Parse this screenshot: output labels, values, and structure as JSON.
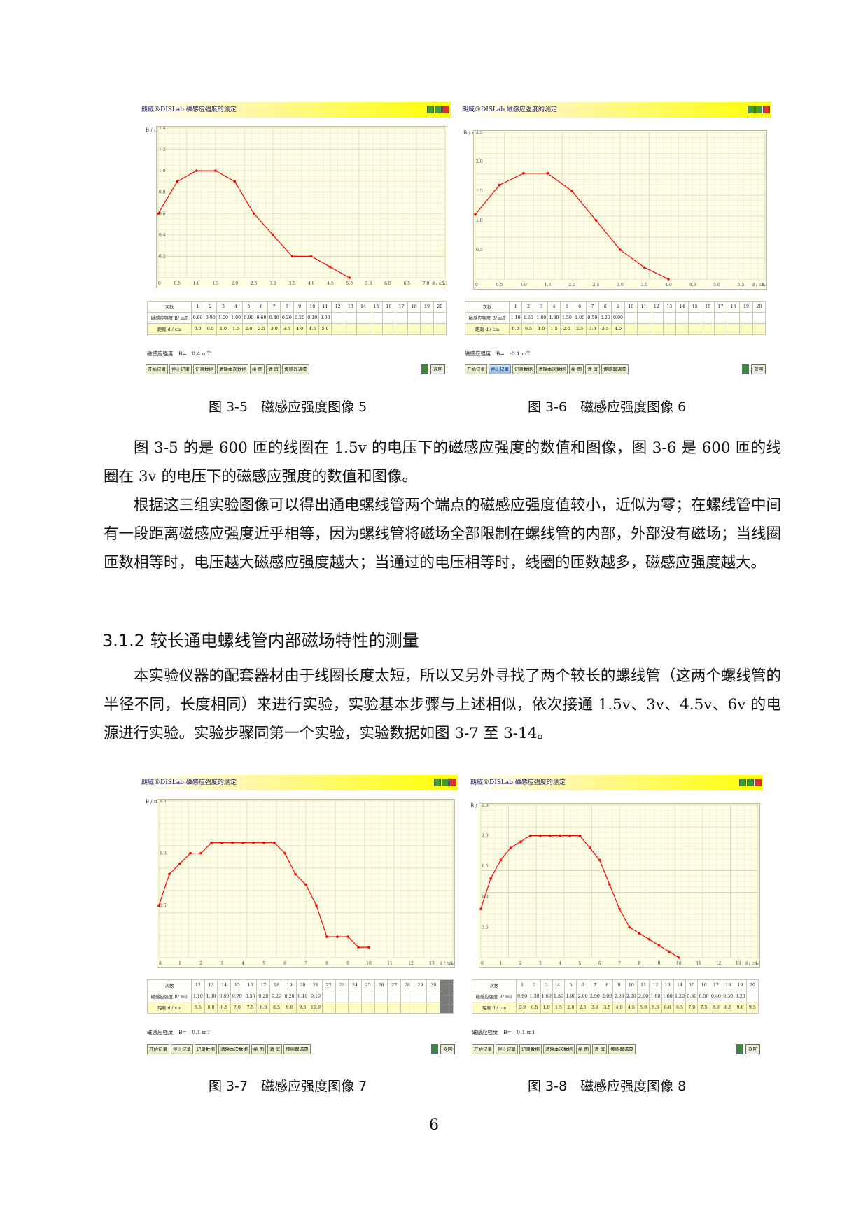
{
  "figures": [
    {
      "id": "fig5",
      "title": "朗威®DISLab 磁感应强度的测定",
      "y_axis_label": "B / mT",
      "x_axis_label": "d / cm",
      "caption": "图 3-5　磁感应强度图像 5",
      "b_readout": "磁感应强度　B=　0.4 mT",
      "table": {
        "header": [
          "次数",
          "1",
          "2",
          "3",
          "4",
          "5",
          "6",
          "7",
          "8",
          "9",
          "10",
          "11",
          "12",
          "13",
          "14",
          "15",
          "16",
          "17",
          "18",
          "19",
          "20"
        ],
        "row_b_label": "磁感应强度 B/ mT",
        "row_b": [
          "0.60",
          "0.90",
          "1.00",
          "1.00",
          "0.90",
          "0.60",
          "0.40",
          "0.20",
          "0.20",
          "0.10",
          "0.00",
          "",
          "",
          "",
          "",
          "",
          "",
          "",
          "",
          ""
        ],
        "row_d_label": "距离 d / cm",
        "row_d": [
          "0.0",
          "0.5",
          "1.0",
          "1.5",
          "2.0",
          "2.5",
          "3.0",
          "3.5",
          "4.0",
          "4.5",
          "5.0",
          "",
          "",
          "",
          "",
          "",
          "",
          "",
          "",
          ""
        ]
      },
      "buttons": [
        "开始记录",
        "停止记录",
        "记录数据",
        "清除本次数据",
        "绘 图",
        "清 屏",
        "传感器调零"
      ],
      "right_buttons": [
        "返回"
      ]
    },
    {
      "id": "fig6",
      "title": "朗威®DISLab 磁感应强度的测定",
      "y_axis_label": "B / mT",
      "x_axis_label": "d / cm",
      "caption": "图 3-6　磁感应强度图像 6",
      "b_readout": "磁感应强度　B=　-0.1 mT",
      "table": {
        "header": [
          "次数",
          "1",
          "2",
          "3",
          "4",
          "5",
          "6",
          "7",
          "8",
          "9",
          "10",
          "11",
          "12",
          "13",
          "14",
          "15",
          "16",
          "17",
          "18",
          "19",
          "20"
        ],
        "row_b_label": "磁感应强度 B/ mT",
        "row_b": [
          "1.10",
          "1.60",
          "1.80",
          "1.80",
          "1.50",
          "1.00",
          "0.50",
          "0.20",
          "0.00",
          "",
          "",
          "",
          "",
          "",
          "",
          "",
          "",
          "",
          "",
          ""
        ],
        "row_d_label": "距离 d / cm",
        "row_d": [
          "0.0",
          "0.5",
          "1.0",
          "1.5",
          "2.0",
          "2.5",
          "3.0",
          "3.5",
          "4.0",
          "",
          "",
          "",
          "",
          "",
          "",
          "",
          "",
          "",
          "",
          ""
        ]
      },
      "buttons": [
        "开始记录",
        "停止记录",
        "记录数据",
        "清除本次数据",
        "绘 图",
        "清 屏",
        "传感器调零"
      ],
      "right_buttons": [
        "返回"
      ]
    },
    {
      "id": "fig7",
      "title": "朗威®DISLab 磁感应强度的测定",
      "y_axis_label": "B / mT",
      "x_axis_label": "d / cm",
      "caption": "图 3-7　磁感应强度图像 7",
      "b_readout": "磁感应强度　B=　0.1 mT",
      "table": {
        "header": [
          "次数",
          "12",
          "13",
          "14",
          "15",
          "16",
          "17",
          "18",
          "19",
          "20",
          "21",
          "22",
          "23",
          "24",
          "25",
          "26",
          "27",
          "28",
          "29",
          "30",
          ""
        ],
        "row_b_label": "磁感应强度 B/ mT",
        "row_b": [
          "1.10",
          "1.00",
          "0.80",
          "0.70",
          "0.50",
          "0.20",
          "0.20",
          "0.20",
          "0.10",
          "0.10",
          "",
          "",
          "",
          "",
          "",
          "",
          "",
          "",
          "",
          ""
        ],
        "row_d_label": "距离 d / cm",
        "row_d": [
          "5.5",
          "6.0",
          "6.5",
          "7.0",
          "7.5",
          "8.0",
          "8.5",
          "9.0",
          "9.5",
          "10.0",
          "",
          "",
          "",
          "",
          "",
          "",
          "",
          "",
          "",
          ""
        ]
      },
      "buttons": [
        "开始记录",
        "停止记录",
        "记录数据",
        "清除本次数据",
        "绘 图",
        "清 屏",
        "传感器调零"
      ],
      "right_buttons": [
        "返回"
      ]
    },
    {
      "id": "fig8",
      "title": "朗威®DISLab 磁感应强度的测定",
      "y_axis_label": "B / mT",
      "x_axis_label": "d / cm",
      "caption": "图 3-8　磁感应强度图像 8",
      "b_readout": "磁感应强度　B=　0.1 mT",
      "table": {
        "header": [
          "次数",
          "1",
          "2",
          "3",
          "4",
          "5",
          "6",
          "7",
          "8",
          "9",
          "10",
          "11",
          "12",
          "13",
          "14",
          "15",
          "16",
          "17",
          "18",
          "19",
          "20"
        ],
        "row_b_label": "磁感应强度 B/ mT",
        "row_b": [
          "0.80",
          "1.30",
          "1.60",
          "1.80",
          "1.90",
          "2.00",
          "2.00",
          "2.00",
          "2.00",
          "2.00",
          "2.00",
          "1.80",
          "1.60",
          "1.20",
          "0.80",
          "0.50",
          "0.40",
          "0.30",
          "0.20",
          ""
        ],
        "row_d_label": "距离 d / cm",
        "row_d": [
          "0.0",
          "0.5",
          "1.0",
          "1.5",
          "2.0",
          "2.5",
          "3.0",
          "3.5",
          "4.0",
          "4.5",
          "5.0",
          "5.5",
          "6.0",
          "6.5",
          "7.0",
          "7.5",
          "8.0",
          "8.5",
          "9.0",
          "9.5"
        ]
      },
      "buttons": [
        "开始记录",
        "停止记录",
        "记录数据",
        "清除本次数据",
        "绘 图",
        "清 屏",
        "传感器调零"
      ],
      "right_buttons": [
        "返回"
      ]
    }
  ],
  "chart_data": [
    {
      "type": "line",
      "xlabel": "d / cm",
      "ylabel": "B / mT",
      "xlim": [
        0,
        7.5
      ],
      "ylim": [
        0,
        1.4
      ],
      "xticks": [
        "0",
        "0.5",
        "1.0",
        "1.5",
        "2.0",
        "2.5",
        "3.0",
        "3.5",
        "4.0",
        "4.5",
        "5.0",
        "5.5",
        "6.0",
        "6.5",
        "7.0",
        "7.5"
      ],
      "yticks": [
        "0.2",
        "0.4",
        "0.6",
        "0.8",
        "1.0",
        "1.2",
        "1.4"
      ],
      "x": [
        0,
        0.5,
        1.0,
        1.5,
        2.0,
        2.5,
        3.0,
        3.5,
        4.0,
        4.5,
        5.0
      ],
      "y": [
        0.6,
        0.9,
        1.0,
        1.0,
        0.9,
        0.6,
        0.4,
        0.2,
        0.2,
        0.1,
        0.0
      ],
      "color": "#ff0000",
      "grid": true
    },
    {
      "type": "line",
      "xlabel": "d / cm",
      "ylabel": "B / mT",
      "xlim": [
        0,
        6.0
      ],
      "ylim": [
        0,
        2.5
      ],
      "xticks": [
        "0",
        "0.5",
        "1.0",
        "1.5",
        "2.0",
        "2.5",
        "3.0",
        "3.5",
        "4.0",
        "4.5",
        "5.0",
        "5.5",
        "6.0"
      ],
      "yticks": [
        "0.5",
        "1.0",
        "1.5",
        "2.0",
        "2.5"
      ],
      "x": [
        0,
        0.5,
        1.0,
        1.5,
        2.0,
        2.5,
        3.0,
        3.5,
        4.0
      ],
      "y": [
        1.1,
        1.6,
        1.8,
        1.8,
        1.5,
        1.0,
        0.5,
        0.2,
        0.0
      ],
      "color": "#ff0000",
      "grid": true
    },
    {
      "type": "line",
      "xlabel": "d / cm",
      "ylabel": "B / mT",
      "xlim": [
        0,
        14
      ],
      "ylim": [
        0,
        1.5
      ],
      "xticks": [
        "0",
        "1",
        "2",
        "3",
        "4",
        "5",
        "6",
        "7",
        "8",
        "9",
        "10",
        "11",
        "12",
        "13",
        "14"
      ],
      "yticks": [
        "0.5",
        "1.0",
        "1.5"
      ],
      "x": [
        0,
        0.5,
        1.0,
        1.5,
        2.0,
        2.5,
        3.0,
        3.5,
        4.0,
        4.5,
        5.0,
        5.5,
        6.0,
        6.5,
        7.0,
        7.5,
        8.0,
        8.5,
        9.0,
        9.5,
        10.0
      ],
      "y": [
        0.5,
        0.8,
        0.9,
        1.0,
        1.0,
        1.1,
        1.1,
        1.1,
        1.1,
        1.1,
        1.1,
        1.1,
        1.0,
        0.8,
        0.7,
        0.5,
        0.2,
        0.2,
        0.2,
        0.1,
        0.1
      ],
      "color": "#ff0000",
      "grid": true
    },
    {
      "type": "line",
      "xlabel": "d / cm",
      "ylabel": "B / mT",
      "xlim": [
        0,
        14
      ],
      "ylim": [
        0,
        2.5
      ],
      "xticks": [
        "0",
        "1",
        "2",
        "3",
        "4",
        "5",
        "6",
        "7",
        "8",
        "9",
        "10",
        "11",
        "12",
        "13",
        "14"
      ],
      "yticks": [
        "0.5",
        "1.0",
        "1.5",
        "2.0",
        "2.5"
      ],
      "x": [
        0,
        0.5,
        1.0,
        1.5,
        2.0,
        2.5,
        3.0,
        3.5,
        4.0,
        4.5,
        5.0,
        5.5,
        6.0,
        6.5,
        7.0,
        7.5,
        8.0,
        8.5,
        9.0,
        9.5,
        10.0
      ],
      "y": [
        0.8,
        1.3,
        1.6,
        1.8,
        1.9,
        2.0,
        2.0,
        2.0,
        2.0,
        2.0,
        2.0,
        1.8,
        1.6,
        1.2,
        0.8,
        0.5,
        0.4,
        0.3,
        0.2,
        0.1,
        0.0
      ],
      "color": "#ff0000",
      "grid": true
    }
  ],
  "paragraphs": [
    "图 3-5 的是 600 匝的线圈在 1.5v 的电压下的磁感应强度的数值和图像，图 3-6 是 600 匝的线圈在 3v 的电压下的磁感应强度的数值和图像。",
    "根据这三组实验图像可以得出通电螺线管两个端点的磁感应强度值较小，近似为零；在螺线管中间有一段距离磁感应强度近乎相等，因为螺线管将磁场全部限制在螺线管的内部，外部没有磁场；当线圈匝数相等时，电压越大磁感应强度越大；当通过的电压相等时，线圈的匝数越多，磁感应强度越大。"
  ],
  "section_heading": "3.1.2 较长通电螺线管内部磁场特性的测量",
  "paragraph3": "本实验仪器的配套器材由于线圈长度太短，所以又另外寻找了两个较长的螺线管（这两个螺线管的半径不同，长度相同）来进行实验，实验基本步骤与上述相似，依次接通 1.5v、3v、4.5v、6v 的电源进行实验。实验步骤同第一个实验，实验数据如图 3-7 至 3-14。",
  "page_number": "6"
}
